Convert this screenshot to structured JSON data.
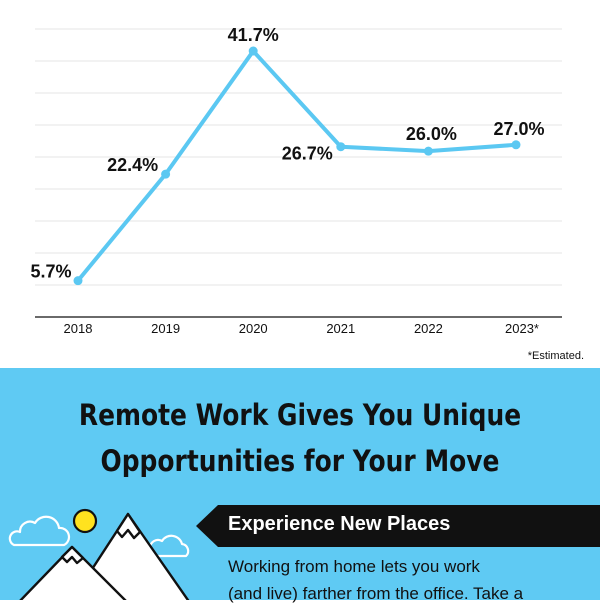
{
  "chart_data": {
    "type": "line",
    "categories": [
      "2018",
      "2019",
      "2020",
      "2021",
      "2022",
      "2023*"
    ],
    "values": [
      5.7,
      22.4,
      41.7,
      26.7,
      26.0,
      27.0
    ],
    "data_labels": [
      "5.7%",
      "22.4%",
      "41.7%",
      "26.7%",
      "26.0%",
      "27.0%"
    ],
    "title": "",
    "xlabel": "",
    "ylabel": "",
    "ylim": [
      0,
      45
    ],
    "grid": true,
    "line_color": "#5bc8f2"
  },
  "footnote": "*Estimated.",
  "section": {
    "background": "#5fcaf3",
    "headline_line1": "Remote Work Gives You Unique",
    "headline_line2": "Opportunities for Your Move",
    "banner_title": "Experience New Places",
    "body_line1": "Working from home lets you work",
    "body_line2": "(and live) farther from the office. Take a"
  },
  "illustration": {
    "icons": [
      "cloud-icon",
      "sun-icon",
      "mountain-icon"
    ],
    "sun_color": "#ffe21f"
  }
}
